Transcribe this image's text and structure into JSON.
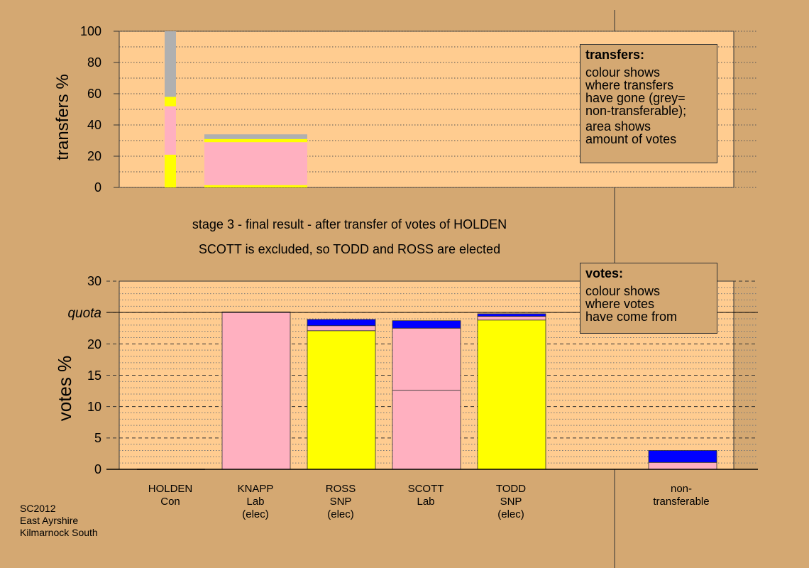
{
  "chart_data": [
    {
      "id": "transfers",
      "type": "bar",
      "ylabel": "transfers %",
      "ylim": [
        0,
        100
      ],
      "yticks": [
        0,
        20,
        40,
        60,
        80,
        100
      ],
      "grid": "dotted every 10",
      "bars": [
        {
          "candidate": "HOLDEN",
          "width_share": "narrow",
          "segments": [
            {
              "color": "#ffff00",
              "from": 0,
              "to": 21
            },
            {
              "color": "#ffb0c0",
              "from": 21,
              "to": 52
            },
            {
              "color": "#ffff00",
              "from": 52,
              "to": 58
            },
            {
              "color": "#b0b0b0",
              "from": 58,
              "to": 100
            }
          ]
        },
        {
          "candidate": "KNAPP",
          "width_share": "wide",
          "segments": [
            {
              "color": "#ffff00",
              "from": 0,
              "to": 1.5
            },
            {
              "color": "#ffb0c0",
              "from": 1.5,
              "to": 29
            },
            {
              "color": "#ffff00",
              "from": 29,
              "to": 31
            },
            {
              "color": "#b0b0b0",
              "from": 31,
              "to": 34
            }
          ]
        }
      ]
    },
    {
      "id": "votes",
      "type": "bar",
      "ylabel": "votes %",
      "ylim": [
        0,
        30
      ],
      "yticks": [
        0,
        5,
        10,
        15,
        20,
        25,
        30
      ],
      "quota": 25,
      "quota_label": "quota",
      "grid": "dashed every 5, dotted every 1",
      "bars": [
        {
          "candidate": "HOLDEN",
          "segments": []
        },
        {
          "candidate": "KNAPP",
          "segments": [
            {
              "color": "#ffb0c0",
              "from": 0,
              "to": 25.1
            }
          ]
        },
        {
          "candidate": "ROSS",
          "segments": [
            {
              "color": "#ffff00",
              "from": 0,
              "to": 22.1
            },
            {
              "color": "#ffb0c0",
              "from": 22.1,
              "to": 22.9
            },
            {
              "color": "#0000ff",
              "from": 22.9,
              "to": 23.9
            }
          ]
        },
        {
          "candidate": "SCOTT",
          "segments": [
            {
              "color": "#ffb0c0",
              "from": 0,
              "to": 12.6
            },
            {
              "color": "#ffb0c0",
              "from": 12.6,
              "to": 22.5
            },
            {
              "color": "#0000ff",
              "from": 22.5,
              "to": 23.7
            }
          ]
        },
        {
          "candidate": "TODD",
          "segments": [
            {
              "color": "#ffff00",
              "from": 0,
              "to": 23.8
            },
            {
              "color": "#ffb0c0",
              "from": 23.8,
              "to": 24.4
            },
            {
              "color": "#0000ff",
              "from": 24.4,
              "to": 24.8
            }
          ]
        },
        {
          "candidate": "non-transferable",
          "segments": [
            {
              "color": "#ffb0c0",
              "from": 0,
              "to": 1.1
            },
            {
              "color": "#0000ff",
              "from": 1.1,
              "to": 3
            }
          ]
        }
      ]
    }
  ],
  "top_ylabel": "transfers %",
  "bottom_ylabel": "votes %",
  "quota_label": "quota",
  "top_ticks": [
    "0",
    "20",
    "40",
    "60",
    "80",
    "100"
  ],
  "bottom_ticks": [
    "0",
    "5",
    "10",
    "15",
    "20",
    "25",
    "30"
  ],
  "caption": {
    "line1": "stage 3 - final result - after transfer of votes of HOLDEN",
    "line2": "SCOTT is excluded, so TODD and ROSS are elected"
  },
  "transfers_note": {
    "heading": "transfers:",
    "line1": "colour shows",
    "line2": "where transfers",
    "line3": "have gone (grey=",
    "line4": "non-transferable);",
    "line5": "area shows",
    "line6": "amount of votes"
  },
  "votes_note": {
    "heading": "votes:",
    "line1": "colour shows",
    "line2": "where votes",
    "line3": "have come from"
  },
  "candidates": [
    {
      "name": "HOLDEN",
      "party": "Con",
      "status": ""
    },
    {
      "name": "KNAPP",
      "party": "Lab",
      "status": "(elec)"
    },
    {
      "name": "ROSS",
      "party": "SNP",
      "status": "(elec)"
    },
    {
      "name": "SCOTT",
      "party": "Lab",
      "status": ""
    },
    {
      "name": "TODD",
      "party": "SNP",
      "status": "(elec)"
    }
  ],
  "nontransferable": {
    "line1": "non-",
    "line2": "transferable"
  },
  "source": {
    "line1": "SC2012",
    "line2": "East Ayrshire",
    "line3": "Kilmarnock South"
  },
  "colors": {
    "background": "#d4a872",
    "plot_area": "#ffcc90",
    "con_yellow": "#ffff00",
    "lab_pink": "#ffb0c0",
    "snp_blue": "#0000ff",
    "nontransferable_grey": "#b0b0b0"
  }
}
